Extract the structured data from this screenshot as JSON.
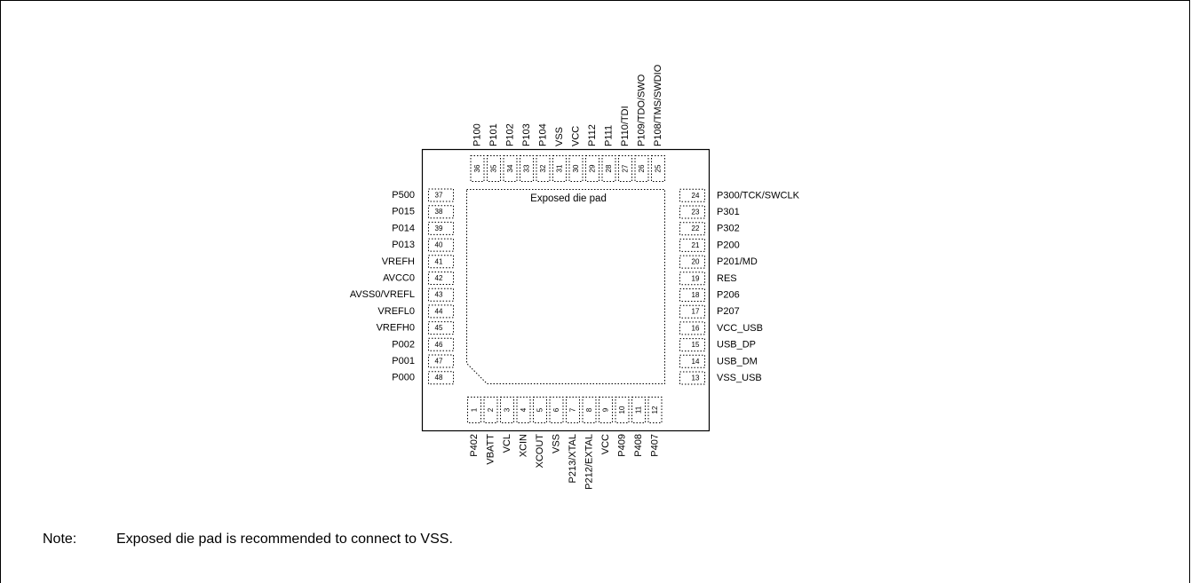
{
  "die_pad_label": "Exposed die pad",
  "note": {
    "label": "Note:",
    "text": "Exposed die pad is recommended to connect to VSS."
  },
  "pins": {
    "bottom": [
      {
        "num": "1",
        "name": "P402"
      },
      {
        "num": "2",
        "name": "VBATT"
      },
      {
        "num": "3",
        "name": "VCL"
      },
      {
        "num": "4",
        "name": "XCIN"
      },
      {
        "num": "5",
        "name": "XCOUT"
      },
      {
        "num": "6",
        "name": "VSS"
      },
      {
        "num": "7",
        "name": "P213/XTAL"
      },
      {
        "num": "8",
        "name": "P212/EXTAL"
      },
      {
        "num": "9",
        "name": "VCC"
      },
      {
        "num": "10",
        "name": "P409"
      },
      {
        "num": "11",
        "name": "P408"
      },
      {
        "num": "12",
        "name": "P407"
      }
    ],
    "right": [
      {
        "num": "13",
        "name": "VSS_USB"
      },
      {
        "num": "14",
        "name": "USB_DM"
      },
      {
        "num": "15",
        "name": "USB_DP"
      },
      {
        "num": "16",
        "name": "VCC_USB"
      },
      {
        "num": "17",
        "name": "P207"
      },
      {
        "num": "18",
        "name": "P206"
      },
      {
        "num": "19",
        "name": "RES"
      },
      {
        "num": "20",
        "name": "P201/MD"
      },
      {
        "num": "21",
        "name": "P200"
      },
      {
        "num": "22",
        "name": "P302"
      },
      {
        "num": "23",
        "name": "P301"
      },
      {
        "num": "24",
        "name": "P300/TCK/SWCLK"
      }
    ],
    "top": [
      {
        "num": "25",
        "name": "P108/TMS/SWDIO"
      },
      {
        "num": "26",
        "name": "P109/TDO/SWO"
      },
      {
        "num": "27",
        "name": "P110/TDI"
      },
      {
        "num": "28",
        "name": "P111"
      },
      {
        "num": "29",
        "name": "P112"
      },
      {
        "num": "30",
        "name": "VCC"
      },
      {
        "num": "31",
        "name": "VSS"
      },
      {
        "num": "32",
        "name": "P104"
      },
      {
        "num": "33",
        "name": "P103"
      },
      {
        "num": "34",
        "name": "P102"
      },
      {
        "num": "35",
        "name": "P101"
      },
      {
        "num": "36",
        "name": "P100"
      }
    ],
    "left": [
      {
        "num": "37",
        "name": "P500"
      },
      {
        "num": "38",
        "name": "P015"
      },
      {
        "num": "39",
        "name": "P014"
      },
      {
        "num": "40",
        "name": "P013"
      },
      {
        "num": "41",
        "name": "VREFH"
      },
      {
        "num": "42",
        "name": "AVCC0"
      },
      {
        "num": "43",
        "name": "AVSS0/VREFL"
      },
      {
        "num": "44",
        "name": "VREFL0"
      },
      {
        "num": "45",
        "name": "VREFH0"
      },
      {
        "num": "46",
        "name": "P002"
      },
      {
        "num": "47",
        "name": "P001"
      },
      {
        "num": "48",
        "name": "P000"
      }
    ]
  }
}
